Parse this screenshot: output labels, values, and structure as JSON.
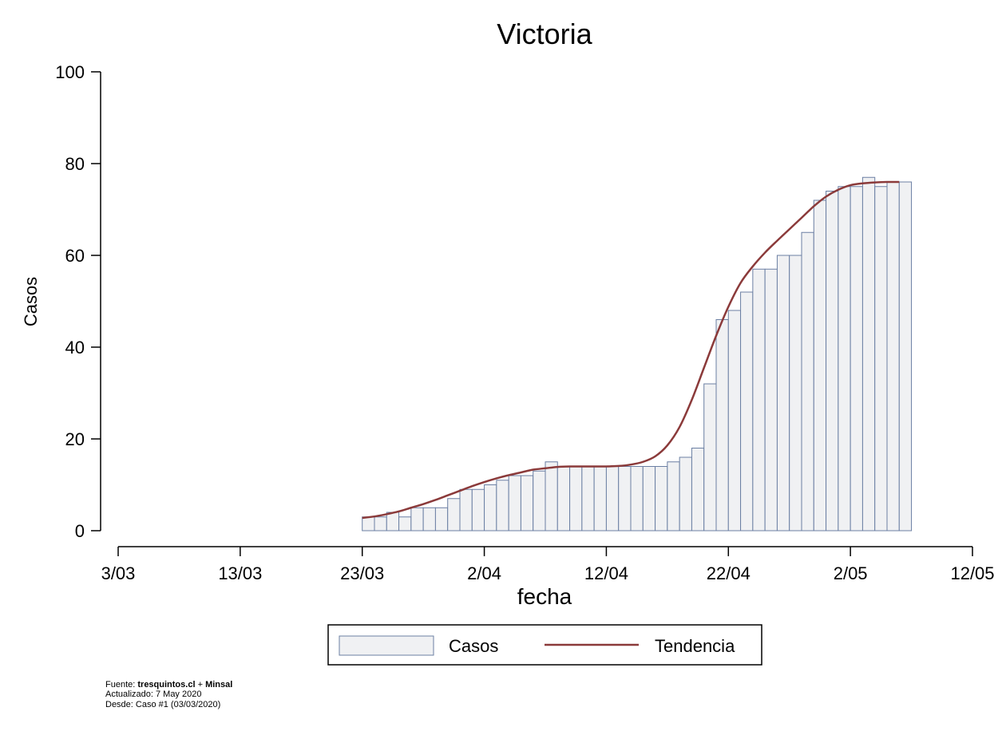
{
  "chart_data": {
    "type": "bar",
    "title": "Victoria",
    "xlabel": "fecha",
    "ylabel": "Casos",
    "x_ticks": [
      "3/03",
      "13/03",
      "23/03",
      "2/04",
      "12/04",
      "22/04",
      "2/05",
      "12/05"
    ],
    "y_ticks": [
      0,
      20,
      40,
      60,
      80,
      100
    ],
    "ylim": [
      0,
      100
    ],
    "xlim_start": "2020-03-03",
    "xlim_end": "2020-05-12",
    "grid": false,
    "legend_position": "bottom",
    "series": [
      {
        "name": "Casos",
        "kind": "bar",
        "fill": "#f0f1f3",
        "stroke": "#6b7fa3",
        "start_date": "2020-03-23",
        "values": [
          3,
          3,
          4,
          3,
          5,
          5,
          5,
          7,
          9,
          9,
          10,
          11,
          12,
          12,
          13,
          15,
          14,
          14,
          14,
          14,
          14,
          14,
          14,
          14,
          14,
          15,
          16,
          18,
          32,
          46,
          48,
          52,
          57,
          57,
          60,
          60,
          65,
          72,
          74,
          75,
          75,
          77,
          75,
          76,
          76
        ]
      },
      {
        "name": "Tendencia",
        "kind": "line",
        "color": "#8b3a3a",
        "start_date": "2020-03-23",
        "values": [
          2.8,
          3.1,
          3.6,
          4.2,
          5.0,
          5.8,
          6.7,
          7.7,
          8.7,
          9.7,
          10.6,
          11.4,
          12.1,
          12.7,
          13.3,
          13.6,
          13.9,
          14.0,
          14.0,
          14.0,
          14.0,
          14.1,
          14.4,
          15.0,
          16.2,
          18.6,
          22.6,
          28.5,
          35.5,
          42.5,
          48.8,
          54.0,
          57.6,
          60.6,
          63.2,
          65.7,
          68.2,
          70.7,
          72.8,
          74.3,
          75.3,
          75.7,
          75.9,
          76.0,
          76.0
        ]
      }
    ]
  },
  "footer": {
    "source_label": "Fuente:",
    "source_a": "tresquintos.cl",
    "source_plus": "+",
    "source_b": "Minsal",
    "updated": "Actualizado: 7 May 2020",
    "since": "Desde: Caso #1   (03/03/2020)"
  }
}
